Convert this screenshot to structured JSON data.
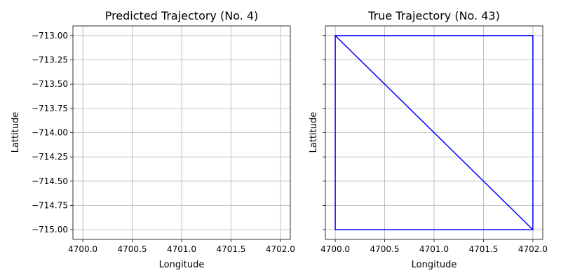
{
  "chart_data": [
    {
      "type": "line",
      "title": "Predicted Trajectory (No. 4)",
      "xlabel": "Longitude",
      "ylabel": "Lattitude",
      "xlim": [
        4699.9,
        4702.1
      ],
      "ylim": [
        -715.1,
        -712.9
      ],
      "xticks": [
        4700.0,
        4700.5,
        4701.0,
        4701.5,
        4702.0
      ],
      "xtick_labels": [
        "4700.0",
        "4700.5",
        "4701.0",
        "4701.5",
        "4702.0"
      ],
      "yticks": [
        -713.0,
        -713.25,
        -713.5,
        -713.75,
        -714.0,
        -714.25,
        -714.5,
        -714.75,
        -715.0
      ],
      "ytick_labels": [
        "−713.00",
        "−713.25",
        "−713.50",
        "−713.75",
        "−714.00",
        "−714.25",
        "−714.50",
        "−714.75",
        "−715.00"
      ],
      "grid": true,
      "series": [
        {
          "color": "#0000ff",
          "x": [],
          "y": []
        }
      ]
    },
    {
      "type": "line",
      "title": "True Trajectory (No. 43)",
      "xlabel": "Longitude",
      "ylabel": "Lattitude",
      "xlim": [
        4699.9,
        4702.1
      ],
      "ylim": [
        -715.1,
        -712.9
      ],
      "xticks": [
        4700.0,
        4700.5,
        4701.0,
        4701.5,
        4702.0
      ],
      "xtick_labels": [
        "4700.0",
        "4700.5",
        "4701.0",
        "4701.5",
        "4702.0"
      ],
      "yticks": [
        -713.0,
        -713.25,
        -713.5,
        -713.75,
        -714.0,
        -714.25,
        -714.5,
        -714.75,
        -715.0
      ],
      "ytick_labels": [],
      "grid": true,
      "series": [
        {
          "color": "#0000ff",
          "x": [
            4700.0,
            4702.0,
            4702.0,
            4700.0,
            4700.0,
            4702.0
          ],
          "y": [
            -713.0,
            -713.0,
            -715.0,
            -715.0,
            -713.0,
            -715.0
          ]
        }
      ]
    }
  ]
}
